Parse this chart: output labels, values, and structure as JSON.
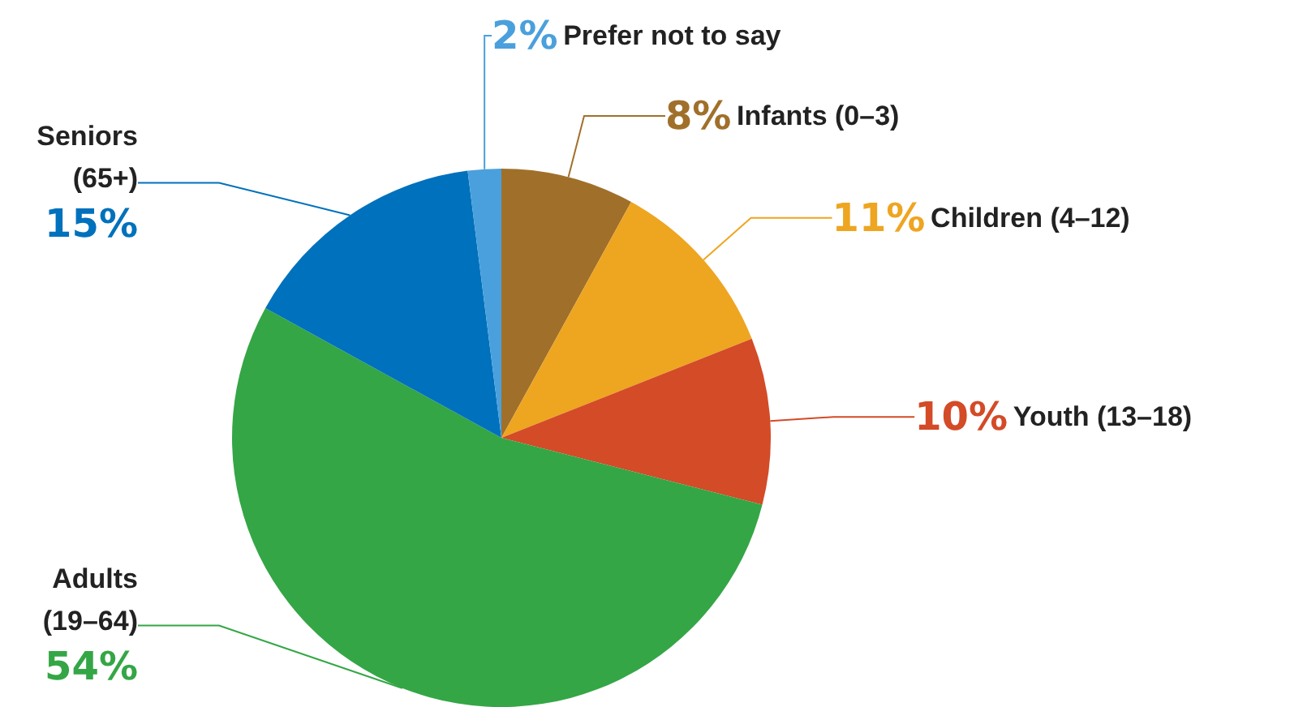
{
  "chart_data": {
    "type": "pie",
    "categories": [
      "Infants (0–3)",
      "Children (4–12)",
      "Youth (13–18)",
      "Adults (19–64)",
      "Seniors (65+)",
      "Prefer not to say"
    ],
    "values": [
      8,
      11,
      10,
      54,
      15,
      2
    ],
    "colors": [
      "#a0702a",
      "#eea520",
      "#d34b27",
      "#34a646",
      "#0071bc",
      "#4aa0dc"
    ],
    "value_labels": [
      "8%",
      "11%",
      "10%",
      "54%",
      "15%",
      "2%"
    ],
    "legend": false
  }
}
